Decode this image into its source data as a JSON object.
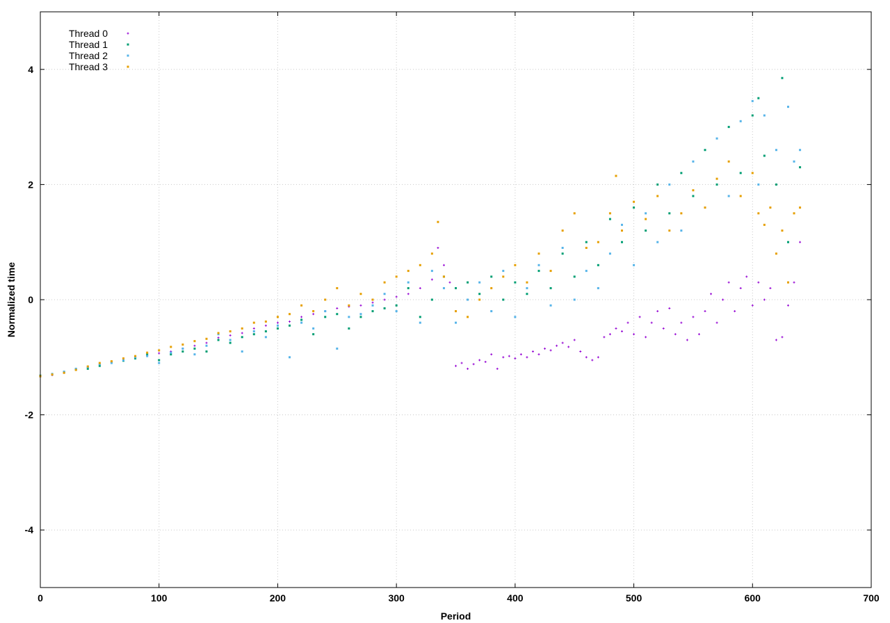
{
  "chart_data": {
    "type": "scatter",
    "title": "",
    "xlabel": "Period",
    "ylabel": "Normalized time",
    "xlim": [
      0,
      700
    ],
    "ylim": [
      -5,
      5
    ],
    "xticks": [
      0,
      100,
      200,
      300,
      400,
      500,
      600,
      700
    ],
    "yticks": [
      -4,
      -2,
      0,
      2,
      4
    ],
    "grid": true,
    "legend_position": "top-left",
    "series": [
      {
        "name": "Thread 0",
        "color": "#9400d3",
        "marker": "plus",
        "points": [
          [
            0,
            -1.33
          ],
          [
            10,
            -1.31
          ],
          [
            20,
            -1.27
          ],
          [
            30,
            -1.22
          ],
          [
            40,
            -1.18
          ],
          [
            50,
            -1.13
          ],
          [
            60,
            -1.09
          ],
          [
            70,
            -1.04
          ],
          [
            80,
            -1.0
          ],
          [
            90,
            -0.97
          ],
          [
            100,
            -0.93
          ],
          [
            110,
            -0.9
          ],
          [
            120,
            -0.85
          ],
          [
            130,
            -0.8
          ],
          [
            140,
            -0.75
          ],
          [
            150,
            -0.66
          ],
          [
            160,
            -0.62
          ],
          [
            170,
            -0.58
          ],
          [
            180,
            -0.5
          ],
          [
            190,
            -0.45
          ],
          [
            200,
            -0.4
          ],
          [
            210,
            -0.38
          ],
          [
            220,
            -0.3
          ],
          [
            230,
            -0.25
          ],
          [
            240,
            -0.2
          ],
          [
            250,
            -0.15
          ],
          [
            260,
            -0.12
          ],
          [
            270,
            -0.1
          ],
          [
            280,
            -0.05
          ],
          [
            290,
            0.0
          ],
          [
            300,
            0.05
          ],
          [
            310,
            0.1
          ],
          [
            320,
            0.2
          ],
          [
            330,
            0.35
          ],
          [
            335,
            0.9
          ],
          [
            340,
            0.6
          ],
          [
            345,
            0.3
          ],
          [
            350,
            -1.15
          ],
          [
            355,
            -1.1
          ],
          [
            360,
            -1.2
          ],
          [
            365,
            -1.12
          ],
          [
            370,
            -1.05
          ],
          [
            375,
            -1.08
          ],
          [
            380,
            -0.95
          ],
          [
            385,
            -1.2
          ],
          [
            390,
            -1.0
          ],
          [
            395,
            -0.98
          ],
          [
            400,
            -1.02
          ],
          [
            405,
            -0.95
          ],
          [
            410,
            -1.0
          ],
          [
            415,
            -0.9
          ],
          [
            420,
            -0.95
          ],
          [
            425,
            -0.85
          ],
          [
            430,
            -0.88
          ],
          [
            435,
            -0.8
          ],
          [
            440,
            -0.75
          ],
          [
            445,
            -0.82
          ],
          [
            450,
            -0.7
          ],
          [
            455,
            -0.9
          ],
          [
            460,
            -1.0
          ],
          [
            465,
            -1.05
          ],
          [
            470,
            -1.0
          ],
          [
            475,
            -0.65
          ],
          [
            480,
            -0.6
          ],
          [
            485,
            -0.5
          ],
          [
            490,
            -0.55
          ],
          [
            495,
            -0.4
          ],
          [
            500,
            -0.6
          ],
          [
            505,
            -0.3
          ],
          [
            510,
            -0.65
          ],
          [
            515,
            -0.4
          ],
          [
            520,
            -0.2
          ],
          [
            525,
            -0.5
          ],
          [
            530,
            -0.15
          ],
          [
            535,
            -0.6
          ],
          [
            540,
            -0.4
          ],
          [
            545,
            -0.7
          ],
          [
            550,
            -0.3
          ],
          [
            555,
            -0.6
          ],
          [
            560,
            -0.2
          ],
          [
            565,
            0.1
          ],
          [
            570,
            -0.4
          ],
          [
            575,
            0.0
          ],
          [
            580,
            0.3
          ],
          [
            585,
            -0.2
          ],
          [
            590,
            0.2
          ],
          [
            595,
            0.4
          ],
          [
            600,
            -0.1
          ],
          [
            605,
            0.3
          ],
          [
            610,
            0.0
          ],
          [
            615,
            0.2
          ],
          [
            620,
            -0.7
          ],
          [
            625,
            -0.65
          ],
          [
            630,
            -0.1
          ],
          [
            635,
            0.3
          ],
          [
            640,
            1.0
          ]
        ]
      },
      {
        "name": "Thread 1",
        "color": "#009e73",
        "marker": "square",
        "points": [
          [
            0,
            -1.32
          ],
          [
            10,
            -1.3
          ],
          [
            20,
            -1.26
          ],
          [
            30,
            -1.21
          ],
          [
            40,
            -1.2
          ],
          [
            50,
            -1.15
          ],
          [
            60,
            -1.08
          ],
          [
            70,
            -1.06
          ],
          [
            80,
            -1.02
          ],
          [
            90,
            -0.95
          ],
          [
            100,
            -1.05
          ],
          [
            110,
            -0.95
          ],
          [
            120,
            -0.9
          ],
          [
            130,
            -0.85
          ],
          [
            140,
            -0.9
          ],
          [
            150,
            -0.7
          ],
          [
            160,
            -0.75
          ],
          [
            170,
            -0.65
          ],
          [
            180,
            -0.6
          ],
          [
            190,
            -0.55
          ],
          [
            200,
            -0.5
          ],
          [
            210,
            -0.45
          ],
          [
            220,
            -0.35
          ],
          [
            230,
            -0.6
          ],
          [
            240,
            -0.3
          ],
          [
            250,
            -0.25
          ],
          [
            260,
            -0.5
          ],
          [
            270,
            -0.3
          ],
          [
            280,
            -0.2
          ],
          [
            290,
            -0.15
          ],
          [
            300,
            -0.1
          ],
          [
            310,
            0.2
          ],
          [
            320,
            -0.3
          ],
          [
            330,
            0.0
          ],
          [
            340,
            0.4
          ],
          [
            350,
            0.2
          ],
          [
            360,
            0.3
          ],
          [
            370,
            0.1
          ],
          [
            380,
            0.4
          ],
          [
            390,
            0.0
          ],
          [
            400,
            0.3
          ],
          [
            410,
            0.1
          ],
          [
            420,
            0.5
          ],
          [
            430,
            0.2
          ],
          [
            440,
            0.8
          ],
          [
            450,
            0.4
          ],
          [
            460,
            1.0
          ],
          [
            470,
            0.6
          ],
          [
            480,
            1.4
          ],
          [
            490,
            1.0
          ],
          [
            500,
            1.6
          ],
          [
            510,
            1.2
          ],
          [
            520,
            2.0
          ],
          [
            530,
            1.5
          ],
          [
            540,
            2.2
          ],
          [
            550,
            1.8
          ],
          [
            560,
            2.6
          ],
          [
            570,
            2.0
          ],
          [
            580,
            3.0
          ],
          [
            590,
            2.2
          ],
          [
            600,
            3.2
          ],
          [
            605,
            3.5
          ],
          [
            610,
            2.5
          ],
          [
            620,
            2.0
          ],
          [
            625,
            3.85
          ],
          [
            630,
            1.0
          ],
          [
            640,
            2.3
          ]
        ]
      },
      {
        "name": "Thread 2",
        "color": "#56b4e9",
        "marker": "square",
        "points": [
          [
            0,
            -1.33
          ],
          [
            10,
            -1.29
          ],
          [
            20,
            -1.25
          ],
          [
            30,
            -1.2
          ],
          [
            40,
            -1.17
          ],
          [
            50,
            -1.12
          ],
          [
            60,
            -1.1
          ],
          [
            70,
            -1.05
          ],
          [
            80,
            -1.0
          ],
          [
            90,
            -0.98
          ],
          [
            100,
            -1.1
          ],
          [
            110,
            -0.92
          ],
          [
            120,
            -0.85
          ],
          [
            130,
            -0.95
          ],
          [
            140,
            -0.8
          ],
          [
            150,
            -0.6
          ],
          [
            160,
            -0.7
          ],
          [
            170,
            -0.9
          ],
          [
            180,
            -0.55
          ],
          [
            190,
            -0.65
          ],
          [
            200,
            -0.45
          ],
          [
            210,
            -1.0
          ],
          [
            220,
            -0.4
          ],
          [
            230,
            -0.5
          ],
          [
            240,
            -0.2
          ],
          [
            250,
            -0.85
          ],
          [
            260,
            -0.3
          ],
          [
            270,
            -0.25
          ],
          [
            280,
            -0.1
          ],
          [
            290,
            0.1
          ],
          [
            300,
            -0.2
          ],
          [
            310,
            0.3
          ],
          [
            320,
            -0.4
          ],
          [
            330,
            0.5
          ],
          [
            340,
            0.2
          ],
          [
            350,
            -0.4
          ],
          [
            360,
            0.0
          ],
          [
            370,
            0.3
          ],
          [
            380,
            -0.2
          ],
          [
            390,
            0.5
          ],
          [
            400,
            -0.3
          ],
          [
            410,
            0.2
          ],
          [
            420,
            0.6
          ],
          [
            430,
            -0.1
          ],
          [
            440,
            0.9
          ],
          [
            450,
            0.0
          ],
          [
            460,
            0.5
          ],
          [
            470,
            0.2
          ],
          [
            480,
            0.8
          ],
          [
            490,
            1.3
          ],
          [
            500,
            0.6
          ],
          [
            510,
            1.5
          ],
          [
            520,
            1.0
          ],
          [
            530,
            2.0
          ],
          [
            540,
            1.2
          ],
          [
            550,
            2.4
          ],
          [
            560,
            1.6
          ],
          [
            570,
            2.8
          ],
          [
            580,
            1.8
          ],
          [
            590,
            3.1
          ],
          [
            600,
            3.45
          ],
          [
            605,
            2.0
          ],
          [
            610,
            3.2
          ],
          [
            620,
            2.6
          ],
          [
            630,
            3.35
          ],
          [
            635,
            2.4
          ],
          [
            640,
            2.6
          ]
        ]
      },
      {
        "name": "Thread 3",
        "color": "#e69f00",
        "marker": "square",
        "points": [
          [
            0,
            -1.33
          ],
          [
            10,
            -1.3
          ],
          [
            20,
            -1.27
          ],
          [
            30,
            -1.22
          ],
          [
            40,
            -1.16
          ],
          [
            50,
            -1.1
          ],
          [
            60,
            -1.07
          ],
          [
            70,
            -1.02
          ],
          [
            80,
            -0.98
          ],
          [
            90,
            -0.92
          ],
          [
            100,
            -0.88
          ],
          [
            110,
            -0.82
          ],
          [
            120,
            -0.78
          ],
          [
            130,
            -0.72
          ],
          [
            140,
            -0.68
          ],
          [
            150,
            -0.58
          ],
          [
            160,
            -0.55
          ],
          [
            170,
            -0.5
          ],
          [
            180,
            -0.4
          ],
          [
            190,
            -0.38
          ],
          [
            200,
            -0.3
          ],
          [
            210,
            -0.25
          ],
          [
            220,
            -0.1
          ],
          [
            230,
            -0.2
          ],
          [
            240,
            0.0
          ],
          [
            250,
            0.2
          ],
          [
            260,
            -0.1
          ],
          [
            270,
            0.1
          ],
          [
            280,
            0.0
          ],
          [
            290,
            0.3
          ],
          [
            300,
            0.4
          ],
          [
            310,
            0.5
          ],
          [
            320,
            0.6
          ],
          [
            330,
            0.8
          ],
          [
            335,
            1.35
          ],
          [
            340,
            0.4
          ],
          [
            350,
            -0.2
          ],
          [
            360,
            -0.3
          ],
          [
            370,
            0.0
          ],
          [
            380,
            0.2
          ],
          [
            390,
            0.4
          ],
          [
            400,
            0.6
          ],
          [
            410,
            0.3
          ],
          [
            420,
            0.8
          ],
          [
            430,
            0.5
          ],
          [
            440,
            1.2
          ],
          [
            450,
            1.5
          ],
          [
            460,
            0.9
          ],
          [
            470,
            1.0
          ],
          [
            480,
            1.5
          ],
          [
            485,
            2.15
          ],
          [
            490,
            1.2
          ],
          [
            500,
            1.7
          ],
          [
            510,
            1.4
          ],
          [
            520,
            1.8
          ],
          [
            530,
            1.2
          ],
          [
            540,
            1.5
          ],
          [
            550,
            1.9
          ],
          [
            560,
            1.6
          ],
          [
            570,
            2.1
          ],
          [
            580,
            2.4
          ],
          [
            590,
            1.8
          ],
          [
            600,
            2.2
          ],
          [
            605,
            1.5
          ],
          [
            610,
            1.3
          ],
          [
            615,
            1.6
          ],
          [
            620,
            0.8
          ],
          [
            625,
            1.2
          ],
          [
            630,
            0.3
          ],
          [
            635,
            1.5
          ],
          [
            640,
            1.6
          ]
        ]
      }
    ]
  }
}
